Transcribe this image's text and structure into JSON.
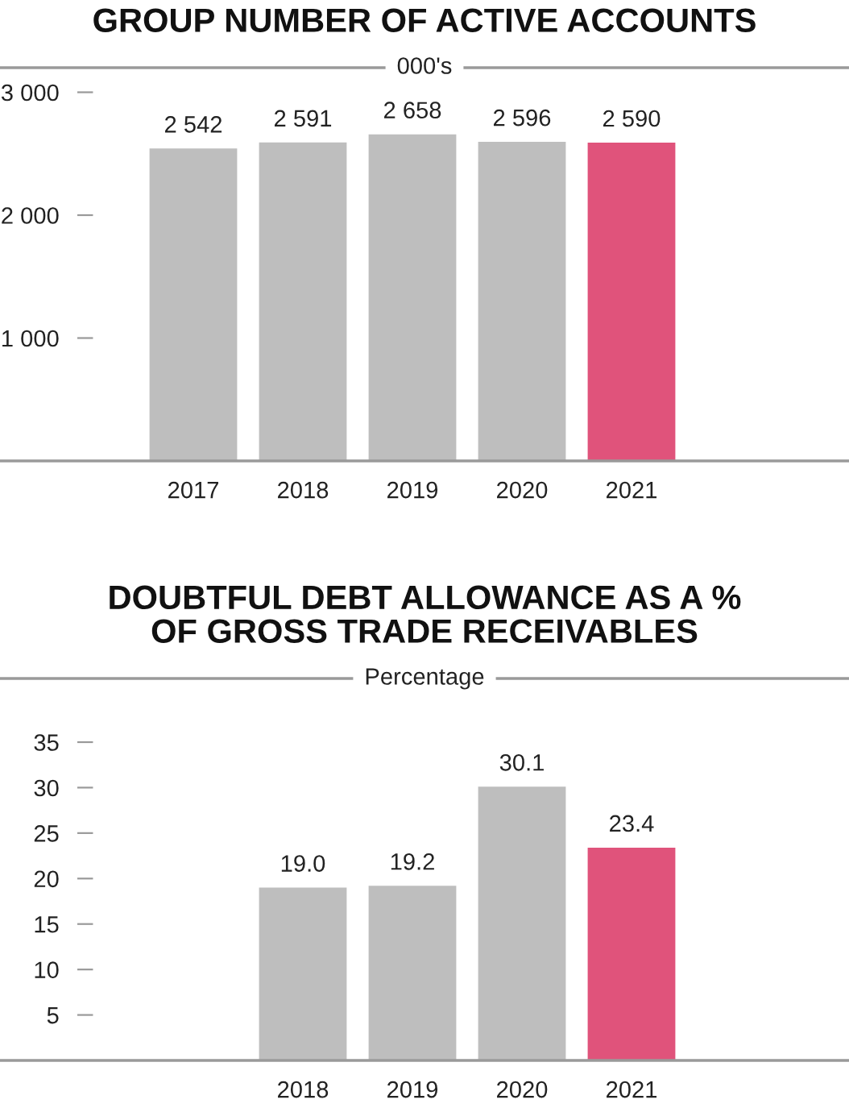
{
  "chart_data": [
    {
      "type": "bar",
      "title": "GROUP NUMBER OF ACTIVE ACCOUNTS",
      "subtitle": "000's",
      "categories": [
        "2017",
        "2018",
        "2019",
        "2020",
        "2021"
      ],
      "values": [
        2542,
        2591,
        2658,
        2596,
        2590
      ],
      "value_labels": [
        "2 542",
        "2 591",
        "2 658",
        "2 596",
        "2 590"
      ],
      "colors": [
        "#bebebe",
        "#bebebe",
        "#bebebe",
        "#bebebe",
        "#e0537b"
      ],
      "ylim": [
        0,
        3200
      ],
      "yticks": [
        {
          "value": 1000,
          "label": "1 000"
        },
        {
          "value": 2000,
          "label": "2 000"
        },
        {
          "value": 3000,
          "label": "3 000"
        }
      ]
    },
    {
      "type": "bar",
      "title": "DOUBTFUL DEBT ALLOWANCE AS A %\nOF GROSS TRADE RECEIVABLES",
      "subtitle": "Percentage",
      "categories": [
        null,
        "2018",
        "2019",
        "2020",
        "2021"
      ],
      "values": [
        null,
        19.0,
        19.2,
        30.1,
        23.4
      ],
      "value_labels": [
        null,
        "19.0",
        "19.2",
        "30.1",
        "23.4"
      ],
      "colors": [
        "#bebebe",
        "#bebebe",
        "#bebebe",
        "#bebebe",
        "#e0537b"
      ],
      "ylim": [
        0,
        42
      ],
      "yticks": [
        5,
        10,
        15,
        20,
        25,
        30,
        35
      ]
    }
  ]
}
